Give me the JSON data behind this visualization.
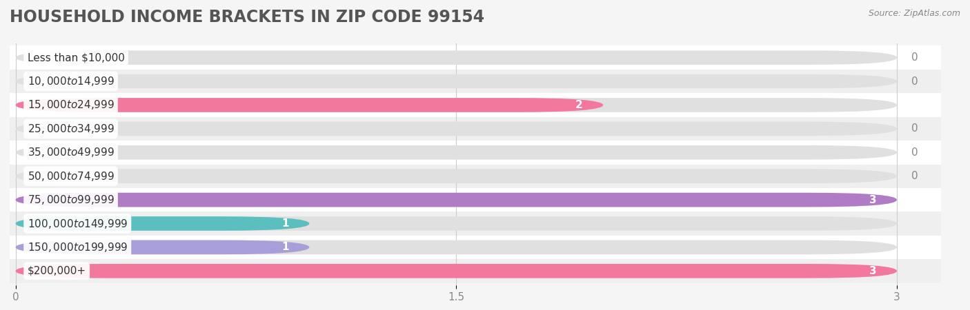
{
  "title": "HOUSEHOLD INCOME BRACKETS IN ZIP CODE 99154",
  "source": "Source: ZipAtlas.com",
  "categories": [
    "Less than $10,000",
    "$10,000 to $14,999",
    "$15,000 to $24,999",
    "$25,000 to $34,999",
    "$35,000 to $49,999",
    "$50,000 to $74,999",
    "$75,000 to $99,999",
    "$100,000 to $149,999",
    "$150,000 to $199,999",
    "$200,000+"
  ],
  "values": [
    0,
    0,
    2,
    0,
    0,
    0,
    3,
    1,
    1,
    3
  ],
  "bar_colors": [
    "#63cec8",
    "#a89fd8",
    "#f3789e",
    "#f5c899",
    "#f4a69a",
    "#a8c4e8",
    "#b07cc6",
    "#5bbfbf",
    "#a89fd8",
    "#f3789e"
  ],
  "background_color": "#f5f5f5",
  "xlim": [
    0,
    3
  ],
  "xticks": [
    0,
    1.5,
    3
  ],
  "title_fontsize": 17,
  "label_fontsize": 11,
  "tick_fontsize": 11,
  "bar_height": 0.6,
  "value_label_color_nonzero": "#ffffff",
  "value_label_color_zero": "#888888"
}
